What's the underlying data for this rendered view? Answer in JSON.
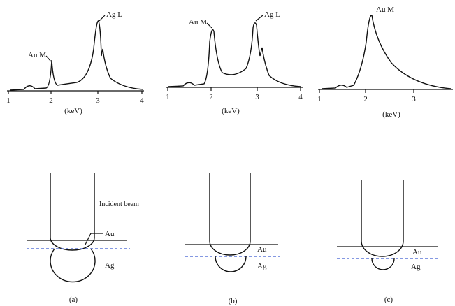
{
  "panels": [
    {
      "spectrum": {
        "ticks": [
          "1",
          "2",
          "3",
          "4"
        ],
        "axis_label": "(keV)",
        "peaks": [
          "Au M",
          "Ag L"
        ]
      },
      "diagram": {
        "labels": [
          "Incident beam",
          "Au",
          "Ag"
        ]
      },
      "caption": "(a)"
    },
    {
      "spectrum": {
        "ticks": [
          "1",
          "2",
          "3",
          "4"
        ],
        "axis_label": "(keV)",
        "peaks": [
          "Au M",
          "Ag L"
        ]
      },
      "diagram": {
        "labels": [
          "Au",
          "Ag"
        ]
      },
      "caption": "(b)"
    },
    {
      "spectrum": {
        "ticks": [
          "1",
          "2",
          "3"
        ],
        "axis_label": "(keV)",
        "peaks": [
          "Au M"
        ]
      },
      "diagram": {
        "labels": [
          "Au",
          "Ag"
        ]
      },
      "caption": "(c)"
    }
  ]
}
